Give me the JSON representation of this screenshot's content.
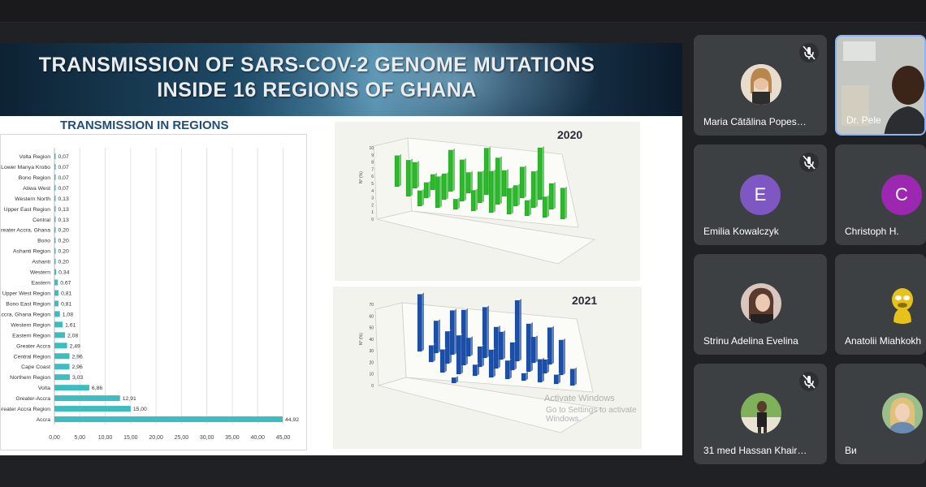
{
  "slide": {
    "title_line1": "TRANSMISSION OF SARS-COV-2 GENOME MUTATIONS",
    "title_line2": "INSIDE 16 REGIONS OF GHANA",
    "chart_heading": "TRANSMISSION IN REGIONS",
    "panel_2020_label": "2020",
    "panel_2021_label": "2021",
    "watermark_line1": "Activate Windows",
    "watermark_line2": "Go to Settings to activate Windows."
  },
  "chart_data": [
    {
      "type": "bar",
      "orientation": "horizontal",
      "title": "TRANSMISSION IN REGIONS",
      "color": "#3fbcc0",
      "categories": [
        "Volta Region",
        "Lower Manya Krobo",
        "Bono Region",
        "Atiwa West",
        "Western North",
        "Upper East Region",
        "Central",
        "Greater Accra, Ghana",
        "Bono",
        "Ashanti Region",
        "Ashanti",
        "Western",
        "Eastern",
        "Upper West Region",
        "Bono East Region",
        "Accra, Ghana Region",
        "Western Region",
        "Eastern Region",
        "Greater Accra",
        "Central Region",
        "Cape Coast",
        "Northern Region",
        "Volta",
        "Greater-Accra",
        "Greater Accra Region",
        "Accra"
      ],
      "values": [
        0.07,
        0.07,
        0.07,
        0.07,
        0.13,
        0.13,
        0.13,
        0.2,
        0.2,
        0.2,
        0.2,
        0.34,
        0.67,
        0.81,
        0.81,
        1.08,
        1.61,
        2.08,
        2.49,
        2.96,
        2.96,
        3.03,
        6.86,
        12.91,
        15.0,
        44.92
      ],
      "value_labels": [
        "0,07",
        "0,07",
        "0,07",
        "0,07",
        "0,13",
        "0,13",
        "0,13",
        "0,20",
        "0,20",
        "0,20",
        "0,20",
        "0,34",
        "0,67",
        "0,81",
        "0,81",
        "1,08",
        "1,61",
        "2,08",
        "2,49",
        "2,96",
        "2,96",
        "3,03",
        "6,86",
        "12,91",
        "15,00",
        "44,92"
      ],
      "xticks": [
        "0,00",
        "5,00",
        "10,00",
        "15,00",
        "20,00",
        "25,00",
        "30,00",
        "35,00",
        "40,00",
        "45,00"
      ],
      "xlim": [
        0,
        47
      ]
    },
    {
      "type": "bar3d",
      "title": "2020",
      "color": "#2eb82e",
      "zticks": [
        "0",
        "1",
        "2",
        "3",
        "4",
        "5",
        "6",
        "7",
        "8",
        "9",
        "10"
      ],
      "zlabel": "N° (%)",
      "values": [
        6,
        5,
        3,
        8,
        4,
        9,
        5,
        6,
        10,
        7,
        3,
        5,
        8,
        6,
        9,
        4,
        7,
        5,
        3,
        6,
        2,
        4,
        8,
        5,
        3,
        4,
        6
      ]
    },
    {
      "type": "bar3d",
      "title": "2021",
      "color": "#1b4fa8",
      "zticks": [
        "0",
        "10",
        "20",
        "30",
        "40",
        "50",
        "60",
        "70"
      ],
      "zlabel": "N° (%)",
      "values": [
        62,
        35,
        48,
        20,
        55,
        30,
        66,
        28,
        40,
        18,
        35,
        60,
        22,
        45,
        30,
        52,
        15,
        38,
        25,
        42,
        12,
        30,
        20,
        8,
        25,
        10,
        18,
        6
      ]
    }
  ],
  "participants": [
    {
      "name": "Maria Cătălina Popes…",
      "muted": true,
      "avatar_color": "#d8b48a",
      "kind": "photo"
    },
    {
      "name": "Dr. Pele",
      "muted": false,
      "kind": "video",
      "active": true
    },
    {
      "name": "Emilia Kowalczyk",
      "muted": true,
      "kind": "letter",
      "letter": "E",
      "avatar_color": "#7e57c2"
    },
    {
      "name": "Christoph H.",
      "muted": false,
      "kind": "letter",
      "letter": "C",
      "avatar_color": "#9c27b0"
    },
    {
      "name": "Strinu Adelina Evelina",
      "muted": false,
      "avatar_color": "#c98f77",
      "kind": "photo"
    },
    {
      "name": "Anatolii Miahkokh",
      "muted": false,
      "avatar_color": "#e6c21a",
      "kind": "photo"
    },
    {
      "name": "31 med Hassan Khair…",
      "muted": true,
      "avatar_color": "#6d9a4a",
      "kind": "photo"
    },
    {
      "name": "Ви",
      "muted": false,
      "avatar_color": "#e0c17a",
      "kind": "photo"
    }
  ]
}
